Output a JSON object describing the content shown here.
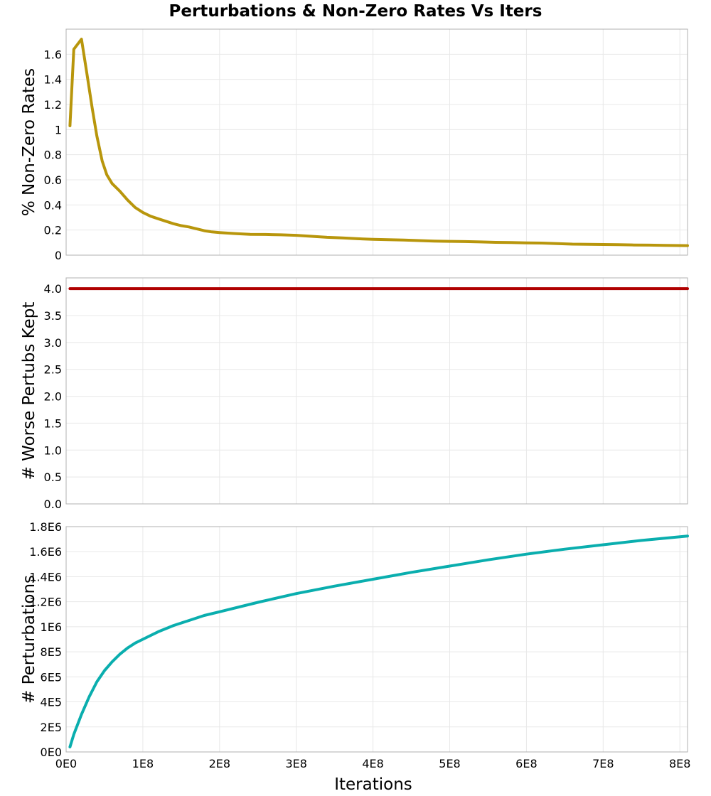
{
  "title": "Perturbations & Non-Zero Rates Vs Iters",
  "chart_data": [
    {
      "type": "line",
      "ylabel": "% Non-Zero Rates",
      "ylim": [
        0,
        1.8
      ],
      "yticks": [
        "0",
        "0.2",
        "0.4",
        "0.6",
        "0.8",
        "1",
        "1.2",
        "1.4",
        "1.6"
      ],
      "ytick_values": [
        0,
        0.2,
        0.4,
        0.6,
        0.8,
        1.0,
        1.2,
        1.4,
        1.6
      ],
      "color": "#b8960c",
      "x": [
        5000000,
        10000000,
        20000000,
        27000000,
        34000000,
        40000000,
        47000000,
        53000000,
        60000000,
        70000000,
        80000000,
        90000000,
        100000000,
        110000000,
        120000000,
        130000000,
        140000000,
        150000000,
        160000000,
        170000000,
        180000000,
        190000000,
        200000000,
        220000000,
        240000000,
        260000000,
        280000000,
        300000000,
        320000000,
        340000000,
        360000000,
        380000000,
        400000000,
        420000000,
        440000000,
        460000000,
        480000000,
        500000000,
        520000000,
        540000000,
        560000000,
        580000000,
        600000000,
        620000000,
        640000000,
        660000000,
        680000000,
        700000000,
        720000000,
        740000000,
        760000000,
        780000000,
        810000000
      ],
      "y": [
        1.03,
        1.64,
        1.72,
        1.45,
        1.17,
        0.95,
        0.75,
        0.64,
        0.57,
        0.51,
        0.44,
        0.38,
        0.34,
        0.31,
        0.29,
        0.27,
        0.25,
        0.235,
        0.225,
        0.21,
        0.195,
        0.185,
        0.18,
        0.172,
        0.166,
        0.165,
        0.162,
        0.158,
        0.15,
        0.142,
        0.137,
        0.131,
        0.126,
        0.123,
        0.12,
        0.116,
        0.112,
        0.11,
        0.108,
        0.105,
        0.102,
        0.1,
        0.098,
        0.096,
        0.092,
        0.088,
        0.086,
        0.085,
        0.083,
        0.081,
        0.08,
        0.078,
        0.076
      ],
      "grid": true
    },
    {
      "type": "line",
      "ylabel": "# Worse Pertubs Kept",
      "ylim": [
        0,
        4.2
      ],
      "yticks": [
        "0.0",
        "0.5",
        "1.0",
        "1.5",
        "2.0",
        "2.5",
        "3.0",
        "3.5",
        "4.0"
      ],
      "ytick_values": [
        0,
        0.5,
        1.0,
        1.5,
        2.0,
        2.5,
        3.0,
        3.5,
        4.0
      ],
      "color": "#b00000",
      "x": [
        5000000,
        810000000
      ],
      "y": [
        4.0,
        4.0
      ],
      "grid": true
    },
    {
      "type": "line",
      "ylabel": "# Perturbations",
      "xlabel": "Iterations",
      "ylim": [
        0,
        1800000
      ],
      "yticks": [
        "0E0",
        "2E5",
        "4E5",
        "6E5",
        "8E5",
        "1E6",
        "1.2E6",
        "1.4E6",
        "1.6E6",
        "1.8E6"
      ],
      "ytick_values": [
        0,
        200000,
        400000,
        600000,
        800000,
        1000000,
        1200000,
        1400000,
        1600000,
        1800000
      ],
      "xlim": [
        0,
        810000000
      ],
      "xticks": [
        "0E0",
        "1E8",
        "2E8",
        "3E8",
        "4E8",
        "5E8",
        "6E8",
        "7E8",
        "8E8"
      ],
      "xtick_values": [
        0,
        100000000,
        200000000,
        300000000,
        400000000,
        500000000,
        600000000,
        700000000,
        800000000
      ],
      "color": "#0aaeae",
      "x": [
        5000000,
        10000000,
        20000000,
        30000000,
        40000000,
        50000000,
        60000000,
        70000000,
        80000000,
        90000000,
        100000000,
        120000000,
        140000000,
        160000000,
        180000000,
        200000000,
        250000000,
        300000000,
        350000000,
        400000000,
        450000000,
        500000000,
        550000000,
        600000000,
        650000000,
        700000000,
        750000000,
        810000000
      ],
      "y": [
        40000,
        140000,
        300000,
        440000,
        560000,
        650000,
        720000,
        780000,
        830000,
        870000,
        900000,
        960000,
        1010000,
        1050000,
        1090000,
        1120000,
        1195000,
        1265000,
        1325000,
        1380000,
        1435000,
        1485000,
        1535000,
        1580000,
        1620000,
        1655000,
        1690000,
        1725000
      ],
      "grid": true
    }
  ]
}
